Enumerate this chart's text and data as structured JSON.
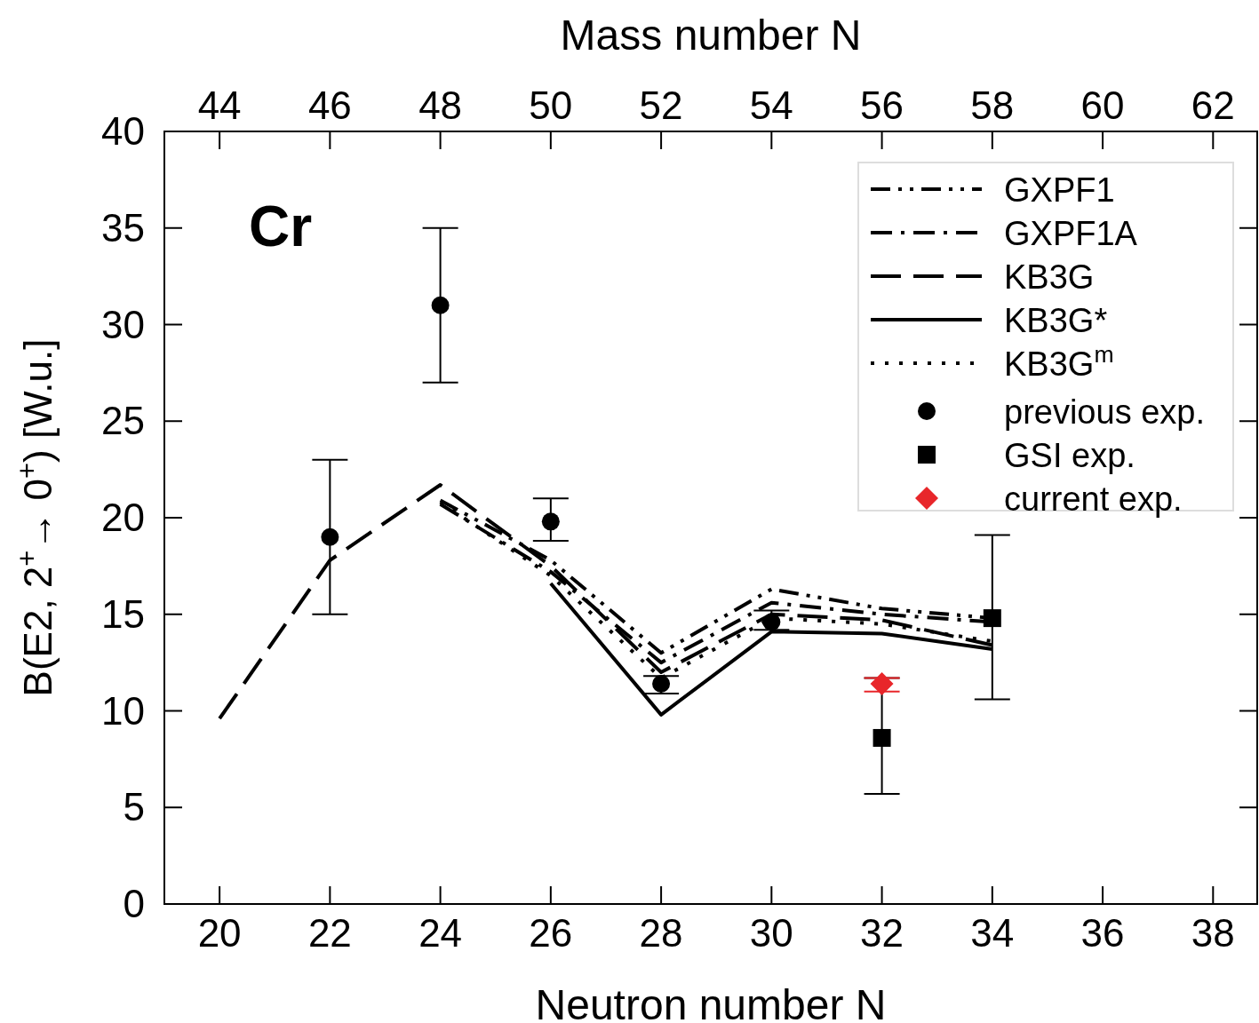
{
  "chart_data": {
    "type": "line",
    "xlabel": "Neutron number N",
    "x2label": "Mass number N",
    "ylabel": "B(E2, 2$^{+}$→ 0$^{+}$)  [W.u.]",
    "annotations": [
      "Cr"
    ],
    "xlim": [
      19,
      38.8
    ],
    "xticks": [
      20,
      22,
      24,
      26,
      28,
      30,
      32,
      34,
      36,
      38
    ],
    "x2lim": [
      43,
      62.8
    ],
    "x2ticks": [
      44,
      46,
      48,
      50,
      52,
      54,
      56,
      58,
      60,
      62
    ],
    "ylim": [
      0,
      40
    ],
    "yticks": [
      0,
      5,
      10,
      15,
      20,
      25,
      30,
      35,
      40
    ],
    "grid": false,
    "legend": "top right",
    "series": [
      {
        "name": "GXPF1",
        "color": "#000000",
        "line_style": "dashdotdot",
        "marker": "none",
        "x": [
          24,
          26,
          28,
          30,
          32,
          34
        ],
        "values": [
          20.9,
          17.8,
          13.0,
          16.3,
          15.3,
          14.8
        ]
      },
      {
        "name": "GXPF1A",
        "color": "#000000",
        "line_style": "dashdot",
        "marker": "none",
        "x": [
          24,
          26,
          28,
          30,
          32,
          34
        ],
        "values": [
          20.7,
          17.2,
          12.5,
          15.6,
          15.0,
          14.6
        ]
      },
      {
        "name": "KB3G",
        "color": "#000000",
        "line_style": "dashed",
        "marker": "none",
        "x": [
          20,
          22,
          24,
          26,
          28,
          30,
          32,
          34
        ],
        "values": [
          9.6,
          17.8,
          21.7,
          17.5,
          12.0,
          15.0,
          14.7,
          13.4
        ]
      },
      {
        "name": "KB3G*",
        "color": "#000000",
        "line_style": "solid",
        "marker": "none",
        "x": [
          26,
          28,
          30,
          32,
          34
        ],
        "values": [
          16.6,
          9.8,
          14.1,
          14.0,
          13.2
        ]
      },
      {
        "name": "KB3G$^{m}$",
        "color": "#000000",
        "line_style": "dotted",
        "marker": "none",
        "x": [
          24,
          26,
          28,
          30,
          32,
          34
        ],
        "values": [
          20.8,
          17.0,
          11.7,
          14.8,
          14.5,
          13.6
        ]
      },
      {
        "name": "previous exp.",
        "type": "scatter",
        "color": "#000000",
        "marker": "circle",
        "x": [
          22,
          24,
          26,
          28,
          30
        ],
        "values": [
          19.0,
          31.0,
          19.8,
          11.4,
          14.6
        ],
        "errors": [
          [
            15,
            23
          ],
          [
            27,
            35
          ],
          [
            18.8,
            21.0
          ],
          [
            10.9,
            11.8
          ],
          [
            14.2,
            15.2
          ]
        ]
      },
      {
        "name": "GSI exp.",
        "type": "scatter",
        "color": "#000000",
        "marker": "square",
        "x": [
          32,
          34
        ],
        "values": [
          8.6,
          14.8
        ],
        "errors": [
          [
            5.7,
            11.7
          ],
          [
            10.6,
            19.1
          ]
        ]
      },
      {
        "name": "current exp.",
        "type": "scatter",
        "color": "#e8262a",
        "marker": "diamond",
        "x": [
          32
        ],
        "values": [
          11.4
        ],
        "errors": [
          [
            11.0,
            11.7
          ]
        ]
      }
    ]
  }
}
